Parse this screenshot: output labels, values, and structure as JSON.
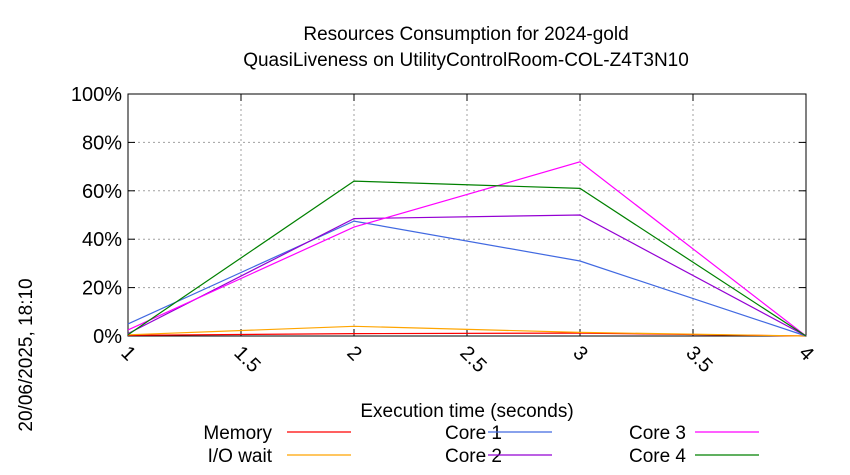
{
  "timestamp": "20/06/2025, 18:10",
  "chart_data": {
    "type": "line",
    "title": "Resources Consumption for 2024-gold",
    "subtitle": "QuasiLiveness on UtilityControlRoom-COL-Z4T3N10",
    "xlabel": "Execution time (seconds)",
    "ylabel": "",
    "xlim": [
      1,
      4
    ],
    "ylim": [
      0,
      100
    ],
    "x_ticks": [
      "1",
      "1.5",
      "2",
      "2.5",
      "3",
      "3.5",
      "4"
    ],
    "x_tick_values": [
      1,
      1.5,
      2,
      2.5,
      3,
      3.5,
      4
    ],
    "y_ticks": [
      "0%",
      "20%",
      "40%",
      "60%",
      "80%",
      "100%"
    ],
    "y_tick_values": [
      0,
      20,
      40,
      60,
      80,
      100
    ],
    "grid": true,
    "legend_position": "bottom",
    "series": [
      {
        "name": "Memory",
        "color": "#ff0000",
        "x": [
          1,
          2,
          3,
          4
        ],
        "y": [
          0.3,
          1.0,
          1.2,
          0
        ]
      },
      {
        "name": "I/O wait",
        "color": "#ffa500",
        "x": [
          1,
          2,
          3,
          4
        ],
        "y": [
          0.5,
          4.0,
          1.5,
          0
        ]
      },
      {
        "name": "Core 1",
        "color": "#4169e1",
        "x": [
          1,
          2,
          3,
          4
        ],
        "y": [
          5,
          47.5,
          31,
          0
        ]
      },
      {
        "name": "Core 2",
        "color": "#9400d3",
        "x": [
          1,
          2,
          3,
          4
        ],
        "y": [
          1,
          48.5,
          50,
          0
        ]
      },
      {
        "name": "Core 3",
        "color": "#ff00ff",
        "x": [
          1,
          2,
          3,
          4
        ],
        "y": [
          2.5,
          45,
          72,
          0
        ]
      },
      {
        "name": "Core 4",
        "color": "#008000",
        "x": [
          1,
          2,
          3,
          4
        ],
        "y": [
          0.5,
          64,
          61,
          0
        ]
      }
    ]
  }
}
